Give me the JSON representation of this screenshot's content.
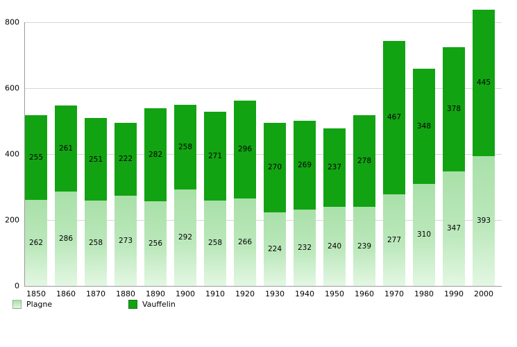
{
  "chart_data": {
    "type": "bar",
    "stacked": true,
    "title": "",
    "xlabel": "",
    "ylabel": "",
    "categories": [
      "1850",
      "1860",
      "1870",
      "1880",
      "1890",
      "1900",
      "1910",
      "1920",
      "1930",
      "1940",
      "1950",
      "1960",
      "1970",
      "1980",
      "1990",
      "2000"
    ],
    "series": [
      {
        "name": "Plagne",
        "color_top": "#a9e0a9",
        "color_bottom": "#e3f7e3",
        "values": [
          262,
          286,
          258,
          273,
          256,
          292,
          258,
          266,
          224,
          232,
          240,
          239,
          277,
          310,
          347,
          393
        ]
      },
      {
        "name": "Vauffelin",
        "color": "#12a312",
        "values": [
          255,
          261,
          251,
          222,
          282,
          258,
          271,
          296,
          270,
          269,
          237,
          278,
          467,
          348,
          378,
          445
        ]
      }
    ],
    "ylim": [
      0,
      800
    ],
    "yticks": [
      0,
      200,
      400,
      600,
      800
    ],
    "grid": true,
    "legend_position": "bottom",
    "data_labels": true
  },
  "legend": {
    "items": [
      {
        "label": "Plagne"
      },
      {
        "label": "Vauffelin"
      }
    ]
  }
}
